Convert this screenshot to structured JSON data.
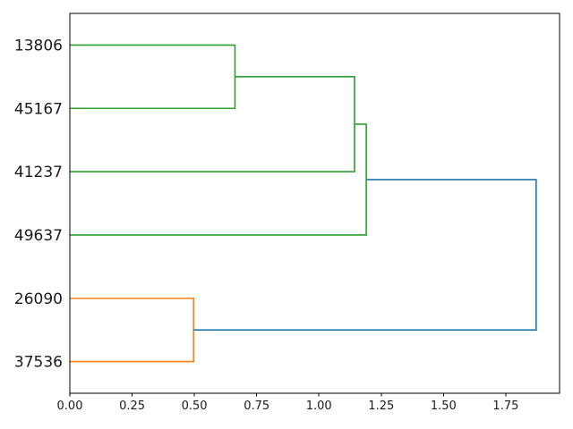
{
  "chart_data": {
    "type": "dendrogram",
    "orientation": "right",
    "title": "",
    "xlabel": "",
    "ylabel": "",
    "leaves_top_to_bottom": [
      "13806",
      "45167",
      "41237",
      "49637",
      "26090",
      "37536"
    ],
    "merges": [
      {
        "children": [
          "13806",
          "45167"
        ],
        "height": 0.66,
        "color": "#2ca02c"
      },
      {
        "children": [
          "13806+45167",
          "41237"
        ],
        "height": 1.14,
        "color": "#2ca02c"
      },
      {
        "children": [
          "13806+45167+41237",
          "49637"
        ],
        "height": 1.19,
        "color": "#2ca02c"
      },
      {
        "children": [
          "26090",
          "37536"
        ],
        "height": 0.5,
        "color": "#ff7f0e"
      },
      {
        "children": [
          "green-cluster",
          "orange-cluster"
        ],
        "height": 1.87,
        "color": "#1f77b4"
      }
    ],
    "tree": {
      "height": 1.872,
      "color": "#1f77b4",
      "children": [
        {
          "height": 1.19,
          "color": "#2ca02c",
          "children": [
            {
              "height": 1.143,
              "color": "#2ca02c",
              "children": [
                {
                  "height": 0.663,
                  "color": "#2ca02c",
                  "children": [
                    {
                      "leaf": "13806"
                    },
                    {
                      "leaf": "45167"
                    }
                  ]
                },
                {
                  "leaf": "41237"
                }
              ]
            },
            {
              "leaf": "49637"
            }
          ]
        },
        {
          "height": 0.497,
          "color": "#ff7f0e",
          "children": [
            {
              "leaf": "26090"
            },
            {
              "leaf": "37536"
            }
          ]
        }
      ]
    },
    "x_axis": {
      "tick_labels": [
        "0.00",
        "0.25",
        "0.50",
        "0.75",
        "1.00",
        "1.25",
        "1.50",
        "1.75"
      ],
      "tick_values": [
        0.0,
        0.25,
        0.5,
        0.75,
        1.0,
        1.25,
        1.5,
        1.75
      ],
      "range": [
        0,
        1.966
      ],
      "grid": false
    },
    "legend": null,
    "colors": {
      "cluster_green": "#2ca02c",
      "cluster_orange": "#ff7f0e",
      "root_blue": "#1f77b4",
      "frame": "#000000",
      "background": "#ffffff"
    }
  }
}
